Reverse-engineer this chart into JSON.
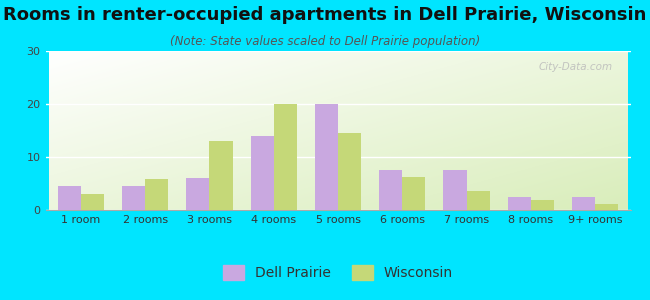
{
  "title": "Rooms in renter-occupied apartments in Dell Prairie, Wisconsin",
  "subtitle": "(Note: State values scaled to Dell Prairie population)",
  "categories": [
    "1 room",
    "2 rooms",
    "3 rooms",
    "4 rooms",
    "5 rooms",
    "6 rooms",
    "7 rooms",
    "8 rooms",
    "9+ rooms"
  ],
  "dell_prairie": [
    4.5,
    4.5,
    6,
    14,
    20,
    7.5,
    7.5,
    2.5,
    2.5
  ],
  "wisconsin": [
    3,
    5.8,
    13,
    20,
    14.5,
    6.2,
    3.5,
    1.8,
    1.2
  ],
  "dell_prairie_color": "#c9a8e0",
  "wisconsin_color": "#c5d878",
  "background_color": "#00e5ff",
  "ylim": [
    0,
    30
  ],
  "yticks": [
    0,
    10,
    20,
    30
  ],
  "bar_width": 0.36,
  "watermark": "City-Data.com",
  "title_fontsize": 13,
  "subtitle_fontsize": 8.5,
  "tick_fontsize": 8,
  "legend_fontsize": 10
}
